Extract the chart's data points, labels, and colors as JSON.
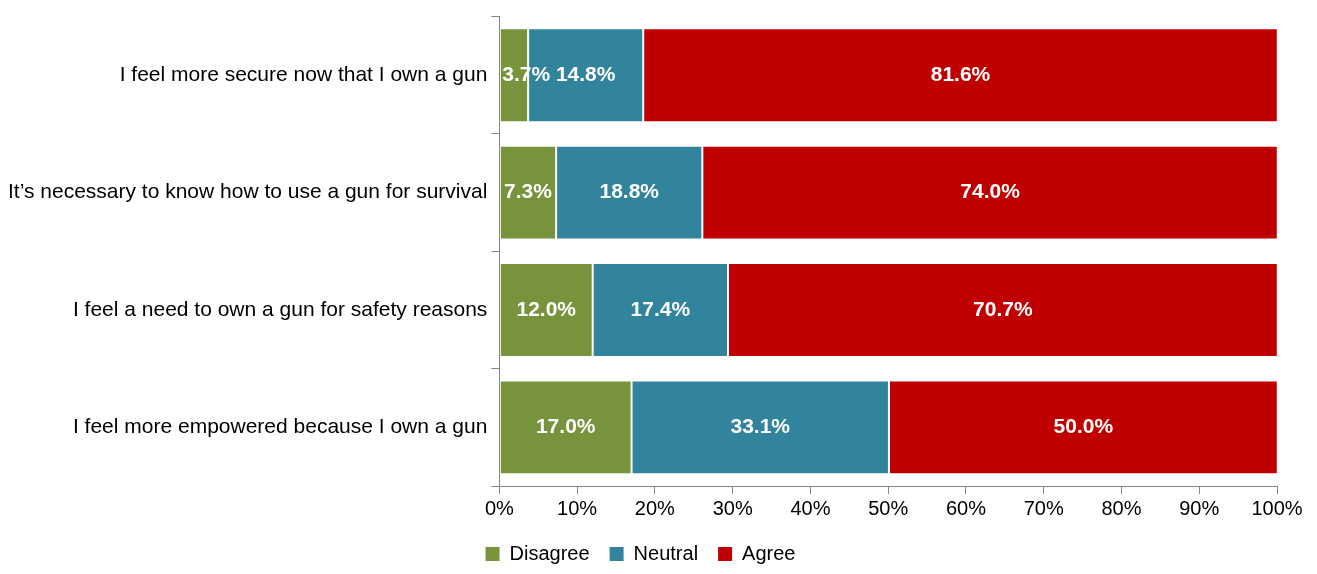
{
  "chart_data": {
    "type": "bar",
    "orientation": "horizontal",
    "stacked": true,
    "categories": [
      "I feel more secure now that I own a gun",
      "It’s necessary to know how to use a gun for survival",
      "I feel a need to own a gun for safety reasons",
      "I feel more empowered because I own a gun"
    ],
    "series": [
      {
        "name": "Disagree",
        "color": "#77933c",
        "values": [
          3.7,
          7.3,
          12.0,
          17.0
        ],
        "value_labels": [
          "3.7%",
          "7.3%",
          "12.0%",
          "17.0%"
        ]
      },
      {
        "name": "Neutral",
        "color": "#31849b",
        "values": [
          14.8,
          18.8,
          17.4,
          33.1
        ],
        "value_labels": [
          "14.8%",
          "18.8%",
          "17.4%",
          "33.1%"
        ]
      },
      {
        "name": "Agree",
        "color": "#c00000",
        "values": [
          81.6,
          74.0,
          70.7,
          50.0
        ],
        "value_labels": [
          "81.6%",
          "74.0%",
          "70.7%",
          "50.0%"
        ]
      }
    ],
    "xlim": [
      0,
      100
    ],
    "xticks": [
      {
        "value": 0,
        "label": "0%"
      },
      {
        "value": 10,
        "label": "10%"
      },
      {
        "value": 20,
        "label": "20%"
      },
      {
        "value": 30,
        "label": "30%"
      },
      {
        "value": 40,
        "label": "40%"
      },
      {
        "value": 50,
        "label": "50%"
      },
      {
        "value": 60,
        "label": "60%"
      },
      {
        "value": 70,
        "label": "70%"
      },
      {
        "value": 80,
        "label": "80%"
      },
      {
        "value": 90,
        "label": "90%"
      },
      {
        "value": 100,
        "label": "100%"
      }
    ],
    "grid": false,
    "legend": "bottom"
  }
}
